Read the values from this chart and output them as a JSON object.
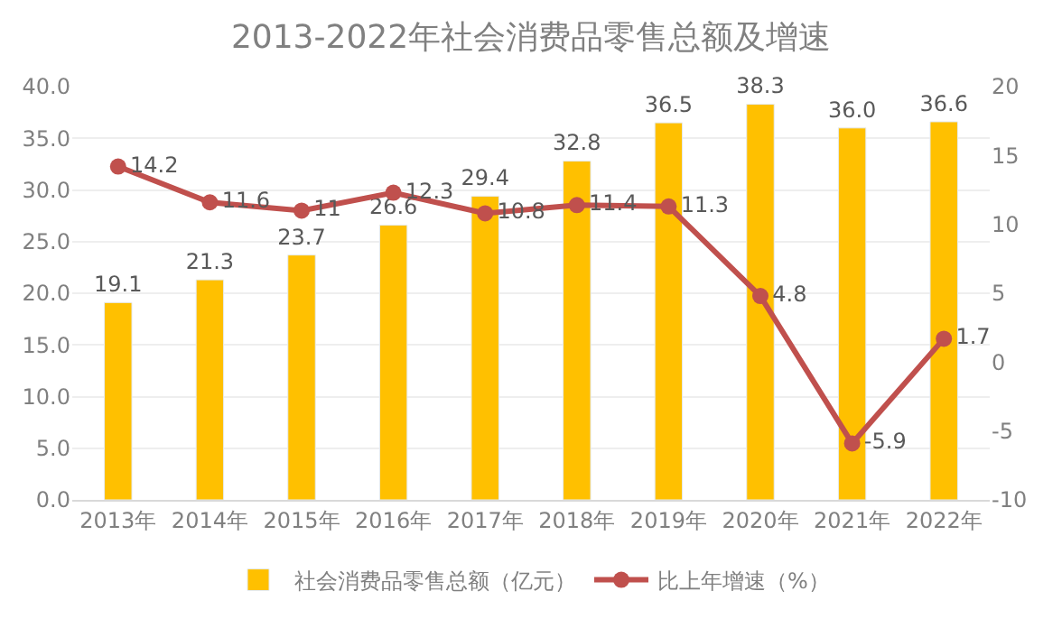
{
  "chart_data": {
    "type": "bar",
    "title": "2013-2022年社会消费品零售总额及增速",
    "categories": [
      "2013年",
      "2014年",
      "2015年",
      "2016年",
      "2017年",
      "2018年",
      "2019年",
      "2020年",
      "2021年",
      "2022年"
    ],
    "series": [
      {
        "name": "社会消费品零售总额（亿元）",
        "color": "#ffc000",
        "values": [
          19.1,
          21.3,
          23.7,
          26.6,
          29.4,
          32.8,
          36.5,
          38.3,
          36.0,
          36.6
        ],
        "value_labels": [
          "19.1",
          "21.3",
          "23.7",
          "26.6",
          "29.4",
          "32.8",
          "36.5",
          "38.3",
          "36.0",
          "36.6"
        ]
      },
      {
        "name": "比上年增速（%）",
        "type": "line",
        "axis": "y2",
        "color": "#c0504d",
        "marker": "circle",
        "values": [
          14.2,
          11.6,
          11,
          12.3,
          10.8,
          11.4,
          11.3,
          4.8,
          -5.9,
          1.7
        ]
      }
    ],
    "ylim": [
      0,
      40
    ],
    "yticks": [
      {
        "value": 0,
        "label": "0.0"
      },
      {
        "value": 5,
        "label": "5.0"
      },
      {
        "value": 10,
        "label": "10.0"
      },
      {
        "value": 15,
        "label": "15.0"
      },
      {
        "value": 20,
        "label": "20.0"
      },
      {
        "value": 25,
        "label": "25.0"
      },
      {
        "value": 30,
        "label": "30.0"
      },
      {
        "value": 35,
        "label": "35.0"
      },
      {
        "value": 40,
        "label": "40.0"
      }
    ],
    "y2lim": [
      -10,
      20
    ],
    "y2ticks": [
      -10,
      -5,
      0,
      5,
      10,
      15,
      20
    ],
    "grid": "y",
    "legend": "bottom",
    "data_labels": true
  }
}
